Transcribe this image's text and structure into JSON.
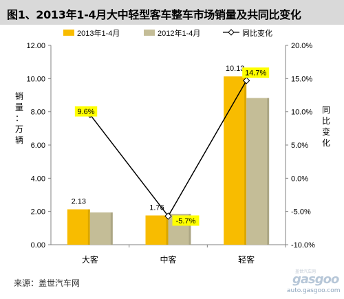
{
  "title": "图1、2013年1-4月大中轻型客车整车市场销量及共同比变化",
  "source": "来源：盖世汽车网",
  "watermark": {
    "logo_text": "gasgoo",
    "url_text": "auto.gasgoo.com",
    "chinese_text": "盖世汽车网"
  },
  "colors": {
    "series_2013": "#f8bc00",
    "series_2012": "#c4bd97",
    "yoy_line": "#000000",
    "label_highlight": "#ffff00"
  },
  "chart_data": {
    "type": "bar",
    "categories": [
      "大客",
      "中客",
      "轻客"
    ],
    "series": [
      {
        "name": "2013年1-4月",
        "values": [
          2.13,
          1.76,
          10.13
        ]
      },
      {
        "name": "2012年1-4月",
        "values": [
          1.94,
          1.86,
          8.83
        ]
      }
    ],
    "line_series": {
      "name": "同比变化",
      "values": [
        9.6,
        -5.7,
        14.7
      ]
    },
    "data_labels_bars": [
      "2.13",
      "1.76",
      "10.13"
    ],
    "data_labels_line": [
      "9.6%",
      "-5.7%",
      "14.7%"
    ],
    "ylabel": "销量：万辆",
    "y2label": "同比变化",
    "ylim": [
      0,
      12
    ],
    "yticks": [
      "0.00",
      "2.00",
      "4.00",
      "6.00",
      "8.00",
      "10.00",
      "12.00"
    ],
    "y2lim": [
      -10,
      20
    ],
    "y2ticks": [
      "-10.0%",
      "-5.0%",
      "0.0%",
      "5.0%",
      "10.0%",
      "15.0%",
      "20.0%"
    ],
    "legend_position": "top",
    "grid": false
  }
}
